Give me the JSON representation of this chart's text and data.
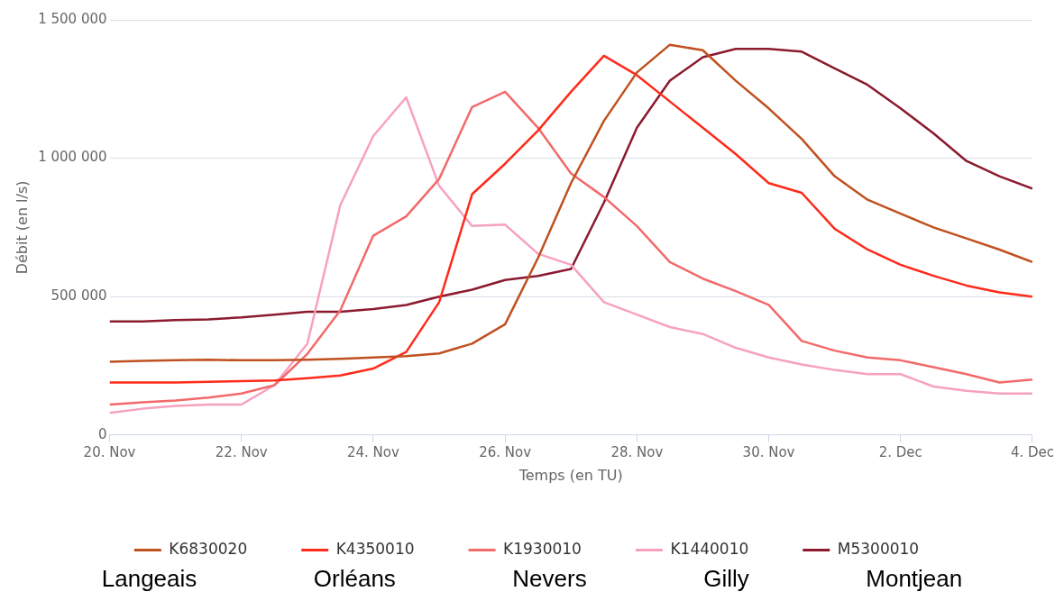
{
  "chart_data": {
    "type": "line",
    "xlabel": "Temps (en TU)",
    "ylabel": "Débit (en l/s)",
    "x": [
      "--11-20T00:00",
      "--11-20T12:00",
      "--11-21T00:00",
      "--11-21T12:00",
      "--11-22T00:00",
      "--11-22T12:00",
      "--11-23T00:00",
      "--11-23T12:00",
      "--11-24T00:00",
      "--11-24T12:00",
      "--11-25T00:00",
      "--11-25T12:00",
      "--11-26T00:00",
      "--11-26T12:00",
      "--11-27T00:00",
      "--11-27T12:00",
      "--11-28T00:00",
      "--11-28T12:00",
      "--11-29T00:00",
      "--11-29T12:00",
      "--11-30T00:00",
      "--11-30T12:00",
      "--12-01T00:00",
      "--12-01T12:00",
      "--12-02T00:00",
      "--12-02T12:00",
      "--12-03T00:00",
      "--12-03T12:00",
      "--12-04T00:00"
    ],
    "series": [
      {
        "name": "K6830020",
        "color": "#c0501f",
        "values": [
          265000,
          268000,
          270000,
          272000,
          270000,
          270000,
          272000,
          275000,
          280000,
          285000,
          295000,
          330000,
          400000,
          640000,
          910000,
          1135000,
          1310000,
          1410000,
          1390000,
          1280000,
          1180000,
          1070000,
          935000,
          850000,
          800000,
          750000,
          710000,
          670000,
          625000
        ]
      },
      {
        "name": "K4350010",
        "color": "#ff2a1a",
        "values": [
          190000,
          190000,
          190000,
          192000,
          195000,
          197000,
          205000,
          215000,
          240000,
          300000,
          480000,
          870000,
          980000,
          1100000,
          1240000,
          1370000,
          1300000,
          1205000,
          1110000,
          1015000,
          910000,
          875000,
          745000,
          670000,
          615000,
          575000,
          540000,
          515000,
          500000
        ]
      },
      {
        "name": "K1930010",
        "color": "#f26a6a",
        "values": [
          110000,
          118000,
          125000,
          135000,
          150000,
          180000,
          293000,
          450000,
          720000,
          790000,
          925000,
          1185000,
          1240000,
          1110000,
          945000,
          860000,
          755000,
          625000,
          565000,
          520000,
          470000,
          340000,
          305000,
          280000,
          270000,
          245000,
          220000,
          190000,
          200000
        ]
      },
      {
        "name": "K1440010",
        "color": "#f7a1c0",
        "values": [
          80000,
          95000,
          105000,
          110000,
          110000,
          180000,
          330000,
          830000,
          1080000,
          1220000,
          900000,
          755000,
          760000,
          655000,
          615000,
          480000,
          435000,
          390000,
          365000,
          315000,
          280000,
          255000,
          235000,
          220000,
          220000,
          175000,
          160000,
          150000,
          150000
        ]
      },
      {
        "name": "M5300010",
        "color": "#8b1a2e",
        "values": [
          410000,
          410000,
          415000,
          418000,
          425000,
          435000,
          445000,
          445000,
          455000,
          470000,
          500000,
          525000,
          560000,
          575000,
          600000,
          840000,
          1110000,
          1280000,
          1365000,
          1395000,
          1395000,
          1385000,
          1325000,
          1265000,
          1180000,
          1090000,
          990000,
          935000,
          890000
        ]
      }
    ],
    "xlim": [
      "--11-20",
      "--12-04"
    ],
    "xticks": [
      {
        "value": "--11-20",
        "label": "20. Nov"
      },
      {
        "value": "--11-22",
        "label": "22. Nov"
      },
      {
        "value": "--11-24",
        "label": "24. Nov"
      },
      {
        "value": "--11-26",
        "label": "26. Nov"
      },
      {
        "value": "--11-28",
        "label": "28. Nov"
      },
      {
        "value": "--11-30",
        "label": "30. Nov"
      },
      {
        "value": "--12-02",
        "label": "2. Dec"
      },
      {
        "value": "--12-04",
        "label": "4. Dec"
      }
    ],
    "ylim": [
      0,
      1500000
    ],
    "yticks": [
      0,
      {
        "value": 500000,
        "label": "500 000"
      },
      {
        "value": 1000000,
        "label": "1 000 000"
      },
      {
        "value": 1500000,
        "label": "1 500 000"
      }
    ],
    "grid": "y",
    "legend": "bottom",
    "line_style": "solid",
    "annotations": [
      "Langeais",
      "Orléans",
      "Nevers",
      "Gilly",
      "Montjean"
    ]
  }
}
